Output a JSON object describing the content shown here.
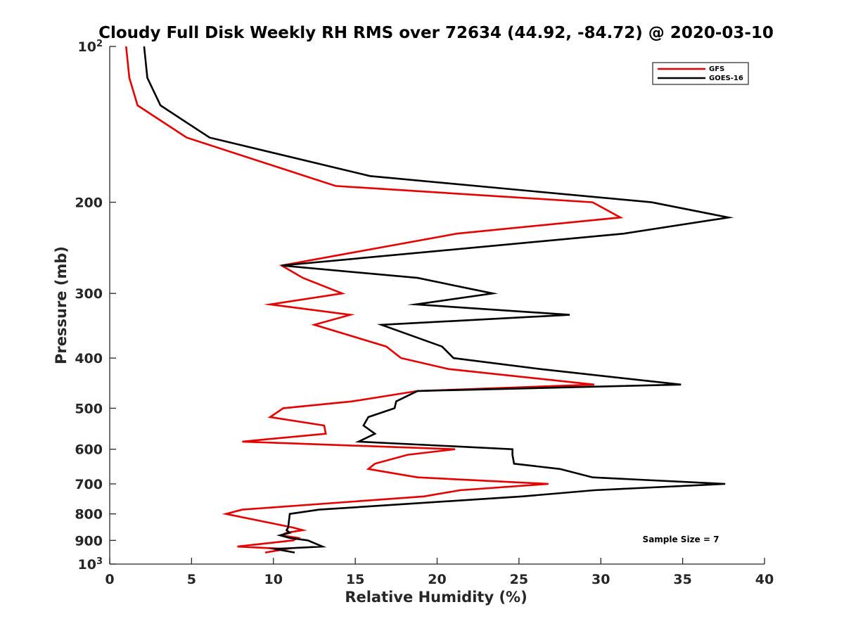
{
  "chart_data": {
    "type": "line",
    "title": "Cloudy Full Disk Weekly RH RMS over 72634 (44.92, -84.72) @ 2020-03-10",
    "xlabel": "Relative Humidity (%)",
    "ylabel": "Pressure (mb)",
    "xlim": [
      0,
      40
    ],
    "ylim": [
      100,
      1000
    ],
    "yscale": "log",
    "y_reversed": true,
    "x_ticks": [
      "0",
      "5",
      "10",
      "15",
      "20",
      "25",
      "30",
      "35",
      "40"
    ],
    "y_ticks": [
      {
        "value": 100,
        "base": "10",
        "exp": "2"
      },
      {
        "value": 200,
        "label": "200"
      },
      {
        "value": 300,
        "label": "300"
      },
      {
        "value": 400,
        "label": "400"
      },
      {
        "value": 500,
        "label": "500"
      },
      {
        "value": 600,
        "label": "600"
      },
      {
        "value": 700,
        "label": "700"
      },
      {
        "value": 800,
        "label": "800"
      },
      {
        "value": 900,
        "label": "900"
      },
      {
        "value": 1000,
        "base": "10",
        "exp": "3"
      }
    ],
    "legend": {
      "position": "top-right",
      "entries": [
        "GFS",
        "GOES-16"
      ]
    },
    "annotation": "Sample Size = 7",
    "grid": false,
    "series": [
      {
        "name": "GFS",
        "color": "#e60000",
        "points": [
          [
            1.0,
            100
          ],
          [
            1.2,
            115
          ],
          [
            1.7,
            130
          ],
          [
            4.7,
            150
          ],
          [
            13.8,
            186
          ],
          [
            29.5,
            200
          ],
          [
            31.2,
            214
          ],
          [
            21.2,
            230
          ],
          [
            10.5,
            265
          ],
          [
            11.8,
            280
          ],
          [
            14.2,
            300
          ],
          [
            9.8,
            315
          ],
          [
            14.7,
            330
          ],
          [
            12.5,
            345
          ],
          [
            16.9,
            380
          ],
          [
            17.8,
            400
          ],
          [
            20.7,
            420
          ],
          [
            29.6,
            450
          ],
          [
            18.8,
            463
          ],
          [
            14.8,
            485
          ],
          [
            10.6,
            500
          ],
          [
            9.8,
            520
          ],
          [
            13.1,
            540
          ],
          [
            13.2,
            560
          ],
          [
            8.1,
            580
          ],
          [
            21.1,
            600
          ],
          [
            18.2,
            615
          ],
          [
            16.2,
            640
          ],
          [
            15.8,
            655
          ],
          [
            18.8,
            680
          ],
          [
            26.8,
            700
          ],
          [
            21.4,
            720
          ],
          [
            19.2,
            740
          ],
          [
            8.1,
            785
          ],
          [
            7.1,
            800
          ],
          [
            11.2,
            850
          ],
          [
            11.8,
            860
          ],
          [
            10.8,
            870
          ],
          [
            10.5,
            880
          ],
          [
            11.5,
            890
          ],
          [
            11.2,
            900
          ],
          [
            7.8,
            925
          ],
          [
            10.8,
            935
          ],
          [
            9.5,
            950
          ]
        ]
      },
      {
        "name": "GOES-16",
        "color": "#000000",
        "points": [
          [
            2.1,
            100
          ],
          [
            2.3,
            115
          ],
          [
            3.1,
            130
          ],
          [
            6.1,
            150
          ],
          [
            15.9,
            178
          ],
          [
            33.1,
            200
          ],
          [
            37.8,
            214
          ],
          [
            31.4,
            230
          ],
          [
            10.5,
            265
          ],
          [
            18.8,
            280
          ],
          [
            23.4,
            300
          ],
          [
            18.7,
            315
          ],
          [
            28.1,
            330
          ],
          [
            16.6,
            345
          ],
          [
            20.3,
            380
          ],
          [
            21.0,
            400
          ],
          [
            26.3,
            420
          ],
          [
            34.9,
            450
          ],
          [
            18.8,
            463
          ],
          [
            17.5,
            485
          ],
          [
            17.4,
            500
          ],
          [
            15.8,
            520
          ],
          [
            15.5,
            540
          ],
          [
            16.2,
            560
          ],
          [
            15.2,
            580
          ],
          [
            24.6,
            600
          ],
          [
            24.6,
            615
          ],
          [
            24.7,
            640
          ],
          [
            27.5,
            655
          ],
          [
            29.5,
            680
          ],
          [
            37.6,
            700
          ],
          [
            29.6,
            720
          ],
          [
            25.2,
            740
          ],
          [
            12.8,
            785
          ],
          [
            11.0,
            800
          ],
          [
            10.9,
            850
          ],
          [
            10.8,
            860
          ],
          [
            11.0,
            870
          ],
          [
            10.4,
            880
          ],
          [
            11.0,
            890
          ],
          [
            12.1,
            900
          ],
          [
            13.0,
            925
          ],
          [
            10.1,
            935
          ],
          [
            11.3,
            950
          ]
        ]
      }
    ]
  }
}
